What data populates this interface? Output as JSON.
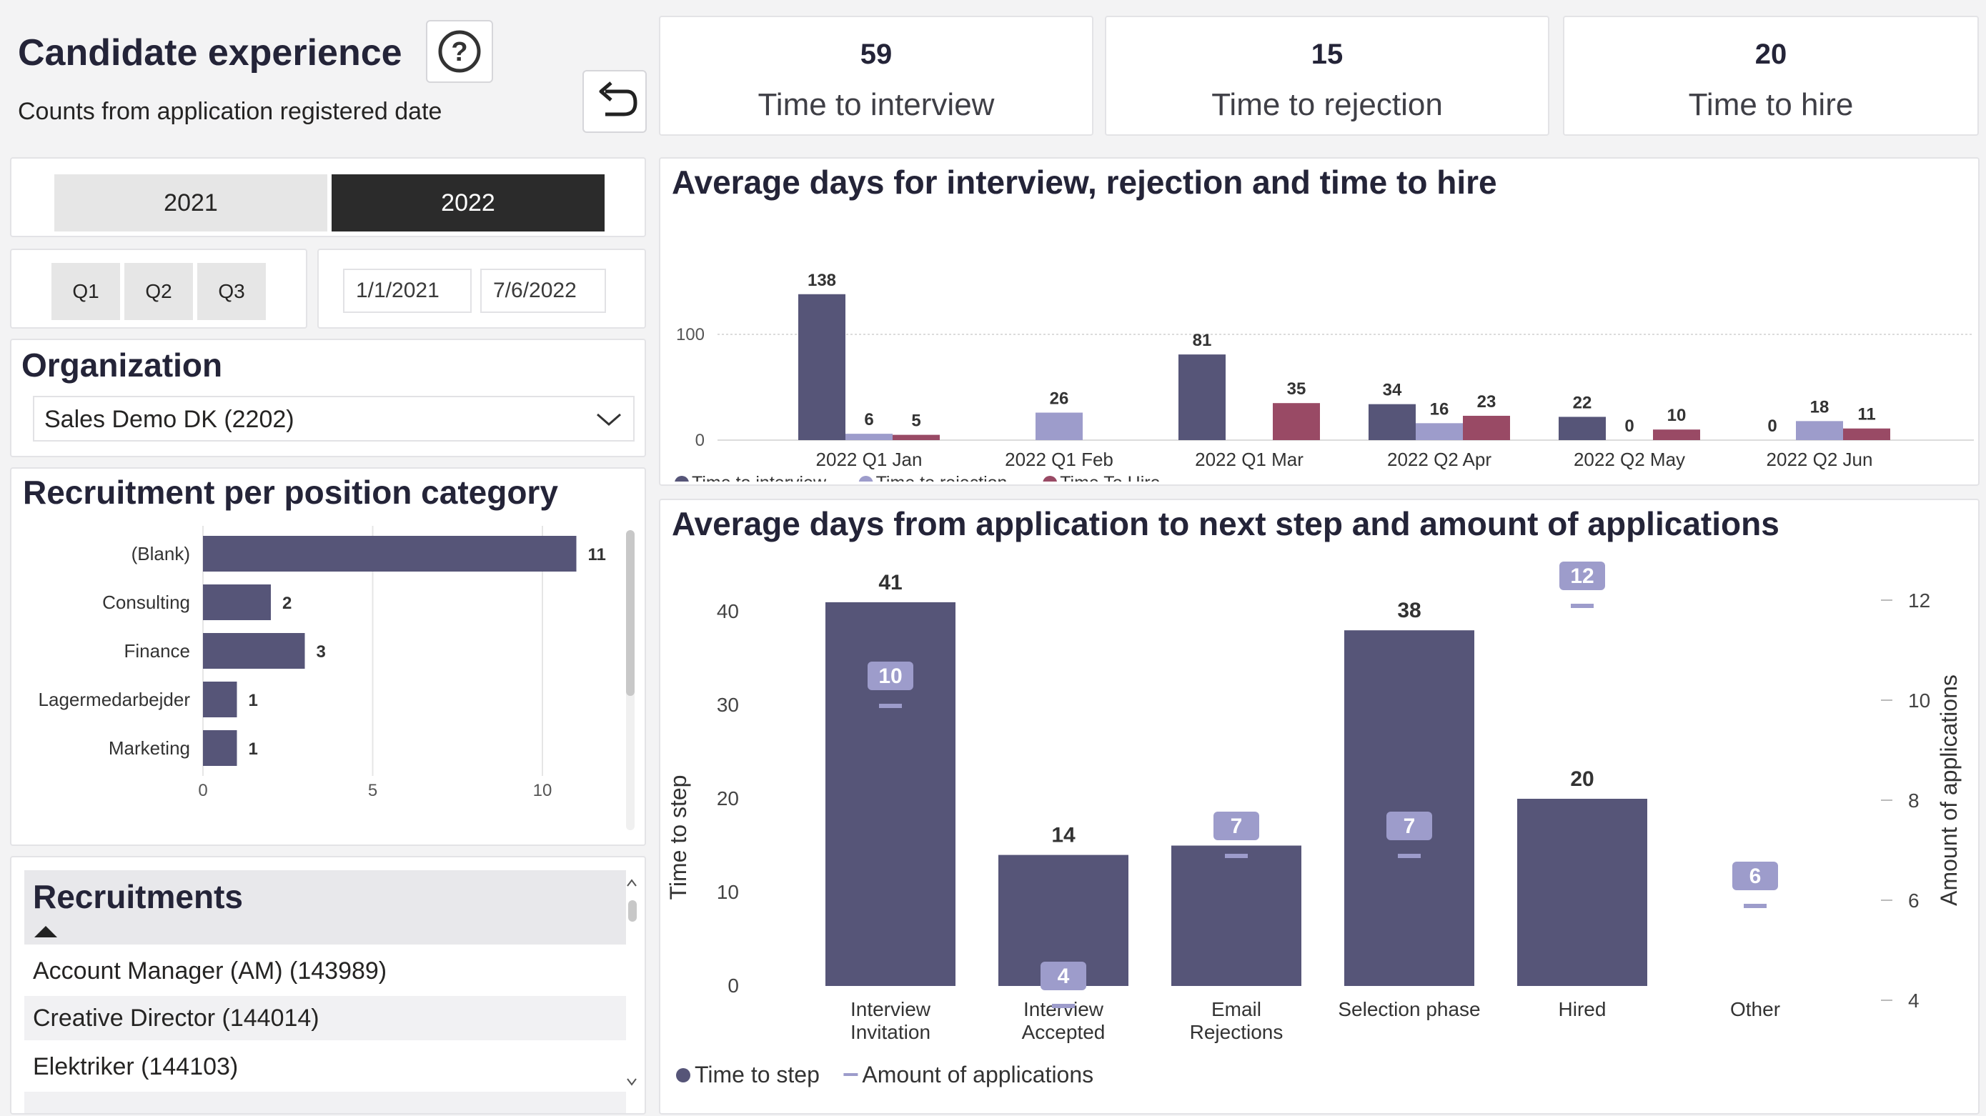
{
  "header": {
    "title": "Candidate experience",
    "subtitle": "Counts from application registered date",
    "help_icon": "question-circle-icon",
    "undo_icon": "undo-arrow-icon"
  },
  "kpis": [
    {
      "value": "59",
      "label": "Time to interview"
    },
    {
      "value": "15",
      "label": "Time to rejection"
    },
    {
      "value": "20",
      "label": "Time to hire"
    }
  ],
  "filters": {
    "years": [
      {
        "label": "2021",
        "selected": false
      },
      {
        "label": "2022",
        "selected": true
      }
    ],
    "quarters": [
      "Q1",
      "Q2",
      "Q3"
    ],
    "date_from": "1/1/2021",
    "date_to": "7/6/2022"
  },
  "organization": {
    "title": "Organization",
    "selected": "Sales Demo DK (2202)",
    "dropdown_icon": "chevron-down-icon"
  },
  "recruitments": {
    "title": "Recruitments",
    "sort_icon": "sort-up-triangle-icon",
    "items": [
      "Account Manager (AM) (143989)",
      "Creative Director (144014)",
      "Elektriker (144103)"
    ]
  },
  "colors": {
    "time_to_interview": "#565578",
    "time_to_rejection": "#9d9ccb",
    "time_to_hire": "#994a65",
    "selected_year_bg": "#2b2b2b",
    "unselected_btn_bg": "#e6e6e6"
  },
  "chart_data": [
    {
      "type": "bar",
      "orientation": "horizontal",
      "title": "Recruitment per position category",
      "categories": [
        "(Blank)",
        "Consulting",
        "Finance",
        "Lagermedarbejder",
        "Marketing"
      ],
      "values": [
        11,
        2,
        3,
        1,
        1
      ],
      "xlim": [
        0,
        12
      ],
      "xticks": [
        0,
        5,
        10
      ],
      "grid": true,
      "color": "#565578"
    },
    {
      "type": "bar",
      "title": "Average days for interview, rejection and time to hire",
      "categories": [
        "2022 Q1 Jan",
        "2022 Q1 Feb",
        "2022 Q1 Mar",
        "2022 Q2 Apr",
        "2022 Q2 May",
        "2022 Q2 Jun"
      ],
      "series": [
        {
          "name": "Time to interview",
          "color": "#565578",
          "values": [
            138,
            null,
            81,
            34,
            22,
            0
          ]
        },
        {
          "name": "Time to rejection",
          "color": "#9d9ccb",
          "values": [
            6,
            26,
            null,
            16,
            0,
            18
          ]
        },
        {
          "name": "Time To Hire",
          "color": "#994a65",
          "values": [
            5,
            null,
            35,
            23,
            10,
            11
          ]
        }
      ],
      "ylim": [
        0,
        150
      ],
      "yticks": [
        0,
        100
      ],
      "legend": "bottom-left",
      "grid": true
    },
    {
      "type": "bar",
      "title": "Average days from application to next step and amount of applications",
      "categories": [
        "Interview Invitation",
        "Interview Accepted",
        "Email Rejections",
        "Selection phase",
        "Hired",
        "Other"
      ],
      "series": [
        {
          "name": "Time to step",
          "color": "#565578",
          "axis": "left",
          "values": [
            41,
            14,
            15,
            38,
            20,
            null
          ]
        },
        {
          "name": "Amount of applications",
          "color": "#9d9ccb",
          "axis": "right",
          "marker": "dash",
          "values": [
            10,
            4,
            7,
            7,
            12,
            6
          ]
        }
      ],
      "ylabel": "Time to step",
      "ylim": [
        0,
        45
      ],
      "yticks": [
        0,
        10,
        20,
        30,
        40
      ],
      "y2label": "Amount of applications",
      "y2lim": [
        3.8,
        12.6
      ],
      "y2ticks": [
        4,
        6,
        8,
        10,
        12
      ],
      "legend": "bottom-left",
      "grid": false
    }
  ]
}
